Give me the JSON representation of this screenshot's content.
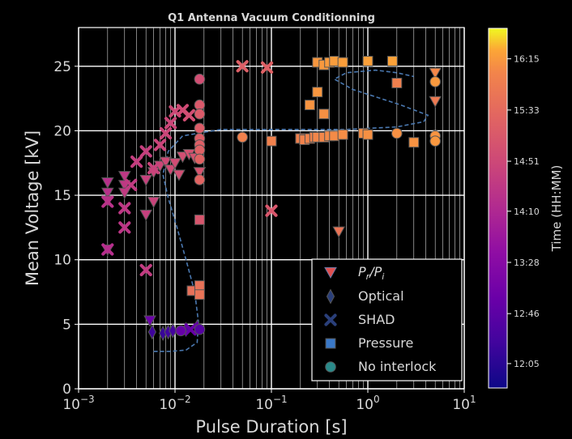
{
  "chart_data": {
    "type": "scatter",
    "title": "Q1 Antenna Vacuum Conditionning",
    "xlabel": "Pulse Duration [s]",
    "ylabel": "Mean Voltage [kV]",
    "xscale": "log",
    "xlim": [
      0.001,
      10
    ],
    "ylim": [
      0,
      28
    ],
    "x_ticks": [
      {
        "value": 0.001,
        "base": "10",
        "exp": "−3"
      },
      {
        "value": 0.01,
        "base": "10",
        "exp": "−2"
      },
      {
        "value": 0.1,
        "base": "10",
        "exp": "−1"
      },
      {
        "value": 1,
        "base": "10",
        "exp": "0"
      },
      {
        "value": 10,
        "base": "10",
        "exp": "1"
      }
    ],
    "y_ticks": [
      0,
      5,
      10,
      15,
      20,
      25
    ],
    "grid": true,
    "legend_position": "bottom-right",
    "legend": [
      {
        "label_main": "P",
        "label_sub1": "r",
        "label_sep": "/P",
        "label_sub2": "i",
        "marker": "triangle-down"
      },
      {
        "label": "Optical",
        "marker": "diamond"
      },
      {
        "label": "SHAD",
        "marker": "x"
      },
      {
        "label": "Pressure",
        "marker": "square"
      },
      {
        "label": "No interlock",
        "marker": "circle"
      }
    ],
    "colorbar": {
      "label": "Time (HH:MM)",
      "tick_labels": [
        "12:05",
        "12:46",
        "13:28",
        "14:10",
        "14:51",
        "15:33",
        "16:15"
      ],
      "range_labels": [
        "11:45",
        "16:40"
      ],
      "range_minutes": [
        705,
        1000
      ],
      "colormap": "plasma"
    },
    "colors": {
      "background": "#000000",
      "grid": "#ffffff",
      "text": "#d8d8d8",
      "trend_line": "#4a78b0",
      "marker_edge": "#555555"
    },
    "series": [
      {
        "marker": "triangle-down",
        "points": [
          {
            "x": 0.002,
            "y": 16.0,
            "t": "14:20"
          },
          {
            "x": 0.002,
            "y": 15.2,
            "t": "14:22"
          },
          {
            "x": 0.002,
            "y": 14.6,
            "t": "14:24"
          },
          {
            "x": 0.002,
            "y": 10.8,
            "t": "14:18"
          },
          {
            "x": 0.003,
            "y": 16.5,
            "t": "14:30"
          },
          {
            "x": 0.003,
            "y": 15.8,
            "t": "14:32"
          },
          {
            "x": 0.003,
            "y": 15.2,
            "t": "14:34"
          },
          {
            "x": 0.005,
            "y": 13.5,
            "t": "14:40"
          },
          {
            "x": 0.005,
            "y": 16.2,
            "t": "14:42"
          },
          {
            "x": 0.006,
            "y": 14.5,
            "t": "14:45"
          },
          {
            "x": 0.006,
            "y": 16.8,
            "t": "14:47"
          },
          {
            "x": 0.007,
            "y": 17.3,
            "t": "14:50"
          },
          {
            "x": 0.008,
            "y": 17.6,
            "t": "14:52"
          },
          {
            "x": 0.009,
            "y": 17.0,
            "t": "14:54"
          },
          {
            "x": 0.01,
            "y": 17.5,
            "t": "14:56"
          },
          {
            "x": 0.011,
            "y": 16.6,
            "t": "14:58"
          },
          {
            "x": 0.012,
            "y": 18.0,
            "t": "15:00"
          },
          {
            "x": 0.014,
            "y": 18.2,
            "t": "15:02"
          },
          {
            "x": 0.016,
            "y": 17.9,
            "t": "15:04"
          },
          {
            "x": 0.018,
            "y": 16.8,
            "t": "15:06"
          },
          {
            "x": 0.0055,
            "y": 5.3,
            "t": "13:00"
          },
          {
            "x": 0.5,
            "y": 12.2,
            "t": "15:45"
          },
          {
            "x": 5.0,
            "y": 24.5,
            "t": "16:05"
          },
          {
            "x": 5.0,
            "y": 22.3,
            "t": "15:52"
          }
        ]
      },
      {
        "marker": "diamond",
        "points": [
          {
            "x": 0.0058,
            "y": 4.4,
            "t": "12:20"
          },
          {
            "x": 0.0075,
            "y": 4.3,
            "t": "12:15"
          },
          {
            "x": 0.0085,
            "y": 4.4,
            "t": "12:22"
          },
          {
            "x": 0.0095,
            "y": 4.5,
            "t": "12:25"
          },
          {
            "x": 0.013,
            "y": 4.6,
            "t": "12:35"
          },
          {
            "x": 0.017,
            "y": 4.8,
            "t": "12:50"
          }
        ]
      },
      {
        "marker": "x",
        "points": [
          {
            "x": 0.002,
            "y": 10.8,
            "t": "14:18"
          },
          {
            "x": 0.002,
            "y": 14.5,
            "t": "14:24"
          },
          {
            "x": 0.003,
            "y": 12.5,
            "t": "14:28"
          },
          {
            "x": 0.003,
            "y": 14.0,
            "t": "14:30"
          },
          {
            "x": 0.0035,
            "y": 15.8,
            "t": "14:34"
          },
          {
            "x": 0.004,
            "y": 17.6,
            "t": "14:38"
          },
          {
            "x": 0.005,
            "y": 18.4,
            "t": "14:40"
          },
          {
            "x": 0.005,
            "y": 9.2,
            "t": "14:36"
          },
          {
            "x": 0.006,
            "y": 17.1,
            "t": "14:44"
          },
          {
            "x": 0.007,
            "y": 18.9,
            "t": "14:46"
          },
          {
            "x": 0.008,
            "y": 19.8,
            "t": "14:48"
          },
          {
            "x": 0.009,
            "y": 20.6,
            "t": "14:50"
          },
          {
            "x": 0.01,
            "y": 21.5,
            "t": "14:52"
          },
          {
            "x": 0.012,
            "y": 21.6,
            "t": "14:55"
          },
          {
            "x": 0.014,
            "y": 21.2,
            "t": "14:58"
          },
          {
            "x": 0.0145,
            "y": 4.6,
            "t": "12:55"
          },
          {
            "x": 0.05,
            "y": 25.0,
            "t": "15:20"
          },
          {
            "x": 0.09,
            "y": 24.9,
            "t": "15:22"
          },
          {
            "x": 0.1,
            "y": 13.8,
            "t": "15:10"
          }
        ]
      },
      {
        "marker": "square",
        "points": [
          {
            "x": 0.015,
            "y": 7.6,
            "t": "15:40"
          },
          {
            "x": 0.018,
            "y": 8.0,
            "t": "15:42"
          },
          {
            "x": 0.018,
            "y": 7.3,
            "t": "15:44"
          },
          {
            "x": 0.018,
            "y": 13.1,
            "t": "15:08"
          },
          {
            "x": 0.1,
            "y": 19.2,
            "t": "16:00"
          },
          {
            "x": 0.2,
            "y": 19.4,
            "t": "16:00"
          },
          {
            "x": 0.22,
            "y": 19.3,
            "t": "16:01"
          },
          {
            "x": 0.25,
            "y": 19.4,
            "t": "16:02"
          },
          {
            "x": 0.28,
            "y": 19.5,
            "t": "16:03"
          },
          {
            "x": 0.3,
            "y": 19.5,
            "t": "16:04"
          },
          {
            "x": 0.35,
            "y": 19.5,
            "t": "16:05"
          },
          {
            "x": 0.4,
            "y": 19.6,
            "t": "16:06"
          },
          {
            "x": 0.45,
            "y": 19.6,
            "t": "16:07"
          },
          {
            "x": 0.55,
            "y": 19.7,
            "t": "16:08"
          },
          {
            "x": 0.9,
            "y": 19.8,
            "t": "16:09"
          },
          {
            "x": 1.0,
            "y": 19.7,
            "t": "16:10"
          },
          {
            "x": 3.0,
            "y": 19.1,
            "t": "16:11"
          },
          {
            "x": 0.25,
            "y": 22.0,
            "t": "16:12"
          },
          {
            "x": 0.3,
            "y": 23.0,
            "t": "16:13"
          },
          {
            "x": 0.3,
            "y": 25.3,
            "t": "16:14"
          },
          {
            "x": 0.35,
            "y": 25.1,
            "t": "16:15"
          },
          {
            "x": 0.4,
            "y": 25.3,
            "t": "16:16"
          },
          {
            "x": 0.45,
            "y": 25.4,
            "t": "16:17"
          },
          {
            "x": 0.55,
            "y": 25.3,
            "t": "16:18"
          },
          {
            "x": 1.0,
            "y": 25.4,
            "t": "16:19"
          },
          {
            "x": 1.8,
            "y": 25.4,
            "t": "16:20"
          },
          {
            "x": 2.0,
            "y": 23.7,
            "t": "15:58"
          },
          {
            "x": 0.35,
            "y": 21.3,
            "t": "16:10"
          }
        ]
      },
      {
        "marker": "circle",
        "points": [
          {
            "x": 0.018,
            "y": 24.0,
            "t": "14:58"
          },
          {
            "x": 0.018,
            "y": 22.0,
            "t": "15:12"
          },
          {
            "x": 0.018,
            "y": 21.3,
            "t": "15:14"
          },
          {
            "x": 0.018,
            "y": 20.2,
            "t": "15:16"
          },
          {
            "x": 0.018,
            "y": 19.4,
            "t": "15:18"
          },
          {
            "x": 0.018,
            "y": 18.9,
            "t": "15:20"
          },
          {
            "x": 0.018,
            "y": 18.5,
            "t": "15:22"
          },
          {
            "x": 0.018,
            "y": 17.8,
            "t": "15:24"
          },
          {
            "x": 0.018,
            "y": 16.2,
            "t": "15:26"
          },
          {
            "x": 0.05,
            "y": 19.5,
            "t": "16:00"
          },
          {
            "x": 2.0,
            "y": 19.8,
            "t": "16:10"
          },
          {
            "x": 5.0,
            "y": 19.6,
            "t": "16:12"
          },
          {
            "x": 5.0,
            "y": 19.2,
            "t": "16:14"
          },
          {
            "x": 5.0,
            "y": 23.8,
            "t": "16:15"
          },
          {
            "x": 0.0115,
            "y": 4.5,
            "t": "12:55"
          },
          {
            "x": 0.018,
            "y": 4.6,
            "t": "12:40"
          }
        ]
      }
    ],
    "trend_line": [
      {
        "x": 0.006,
        "y": 2.9
      },
      {
        "x": 0.009,
        "y": 2.9
      },
      {
        "x": 0.013,
        "y": 3.0
      },
      {
        "x": 0.017,
        "y": 3.6
      },
      {
        "x": 0.0175,
        "y": 5.2
      },
      {
        "x": 0.016,
        "y": 7.5
      },
      {
        "x": 0.013,
        "y": 10.0
      },
      {
        "x": 0.0105,
        "y": 12.5
      },
      {
        "x": 0.0085,
        "y": 14.8
      },
      {
        "x": 0.0075,
        "y": 16.6
      },
      {
        "x": 0.0085,
        "y": 18.4
      },
      {
        "x": 0.012,
        "y": 19.6
      },
      {
        "x": 0.03,
        "y": 20.1
      },
      {
        "x": 0.15,
        "y": 20.1
      },
      {
        "x": 0.6,
        "y": 20.1
      },
      {
        "x": 2.0,
        "y": 20.3
      },
      {
        "x": 3.8,
        "y": 20.7
      },
      {
        "x": 4.2,
        "y": 21.2
      },
      {
        "x": 2.2,
        "y": 22.0
      },
      {
        "x": 0.7,
        "y": 23.2
      },
      {
        "x": 0.45,
        "y": 24.0
      },
      {
        "x": 0.6,
        "y": 24.5
      },
      {
        "x": 1.2,
        "y": 24.7
      },
      {
        "x": 2.0,
        "y": 24.5
      },
      {
        "x": 3.0,
        "y": 24.2
      }
    ]
  }
}
